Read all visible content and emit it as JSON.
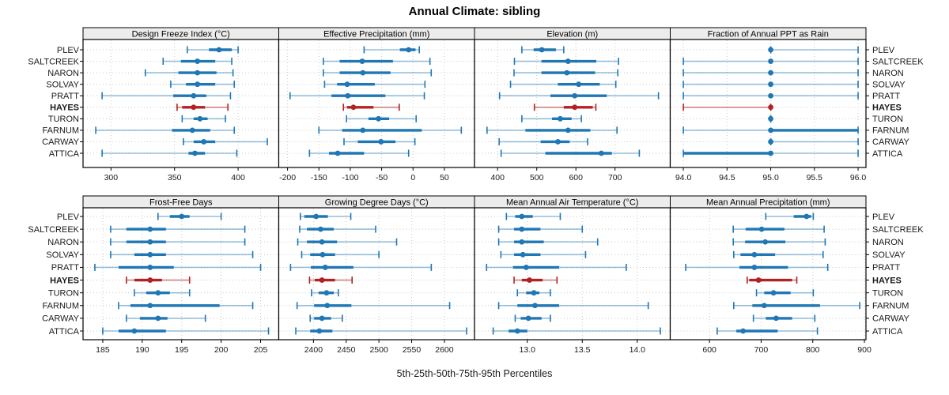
{
  "title": "Annual Climate: sibling",
  "footer_label": "5th-25th-50th-75th-95th Percentiles",
  "sites": [
    "PLEV",
    "SALTCREEK",
    "NARON",
    "SOLVAY",
    "PRATT",
    "HAYES",
    "TURON",
    "FARNUM",
    "CARWAY",
    "ATTICA"
  ],
  "highlight_site": "HAYES",
  "percentile_levels": [
    "5th",
    "25th",
    "50th",
    "75th",
    "95th"
  ],
  "colors": {
    "series": "#1f77b4",
    "series_light": "rgba(31,119,180,0.45)",
    "highlight": "#b22222",
    "highlight_light": "rgba(178,34,34,0.55)",
    "strip_bg": "#ececec",
    "panel_border": "#000000",
    "grid": "#c9c9c9",
    "tick_text": "#1a1a1a"
  },
  "chart_data": [
    {
      "type": "interval",
      "title": "Design Freeze Index (°C)",
      "row": 0,
      "col": 0,
      "xlim": [
        278,
        432
      ],
      "ticks": [
        300,
        350,
        400
      ],
      "tick_labels": [
        "300",
        "350",
        "400"
      ],
      "grid": true,
      "series": [
        {
          "site": "PLEV",
          "percentiles": [
            360,
            377,
            385,
            395,
            400
          ]
        },
        {
          "site": "SALTCREEK",
          "percentiles": [
            341,
            355,
            368,
            382,
            395
          ]
        },
        {
          "site": "NARON",
          "percentiles": [
            327,
            353,
            368,
            383,
            396
          ]
        },
        {
          "site": "SOLVAY",
          "percentiles": [
            347,
            359,
            368,
            382,
            397
          ]
        },
        {
          "site": "PRATT",
          "percentiles": [
            293,
            349,
            365,
            375,
            394
          ]
        },
        {
          "site": "HAYES",
          "percentiles": [
            352,
            356,
            365,
            374,
            392
          ]
        },
        {
          "site": "TURON",
          "percentiles": [
            356,
            365,
            370,
            376,
            390
          ]
        },
        {
          "site": "FARNUM",
          "percentiles": [
            288,
            348,
            364,
            378,
            397
          ]
        },
        {
          "site": "CARWAY",
          "percentiles": [
            357,
            365,
            373,
            382,
            423
          ]
        },
        {
          "site": "ATTICA",
          "percentiles": [
            293,
            361,
            366,
            374,
            399
          ]
        }
      ]
    },
    {
      "type": "interval",
      "title": "Effective Precipitation (mm)",
      "row": 0,
      "col": 1,
      "xlim": [
        -214,
        98
      ],
      "ticks": [
        -200,
        -150,
        -100,
        -50,
        0,
        50
      ],
      "tick_labels": [
        "-200",
        "-150",
        "-100",
        "-50",
        "0",
        "50"
      ],
      "grid": true,
      "series": [
        {
          "site": "PLEV",
          "percentiles": [
            -78,
            -21,
            -7,
            4,
            10
          ]
        },
        {
          "site": "SALTCREEK",
          "percentiles": [
            -143,
            -117,
            -81,
            -32,
            27
          ]
        },
        {
          "site": "NARON",
          "percentiles": [
            -143,
            -117,
            -80,
            -36,
            29
          ]
        },
        {
          "site": "SOLVAY",
          "percentiles": [
            -141,
            -121,
            -105,
            -61,
            19
          ]
        },
        {
          "site": "PRATT",
          "percentiles": [
            -196,
            -130,
            -104,
            -44,
            18
          ]
        },
        {
          "site": "HAYES",
          "percentiles": [
            -111,
            -105,
            -95,
            -63,
            -22
          ]
        },
        {
          "site": "TURON",
          "percentiles": [
            -106,
            -71,
            -55,
            -38,
            5
          ]
        },
        {
          "site": "FARNUM",
          "percentiles": [
            -150,
            -113,
            -80,
            14,
            77
          ]
        },
        {
          "site": "CARWAY",
          "percentiles": [
            -110,
            -88,
            -51,
            -28,
            3
          ]
        },
        {
          "site": "ATTICA",
          "percentiles": [
            -165,
            -134,
            -120,
            -78,
            -7
          ]
        }
      ]
    },
    {
      "type": "interval",
      "title": "Elevation (m)",
      "row": 0,
      "col": 2,
      "xlim": [
        341,
        841
      ],
      "ticks": [
        400,
        500,
        600,
        700
      ],
      "tick_labels": [
        "400",
        "500",
        "600",
        "700"
      ],
      "grid": true,
      "series": [
        {
          "site": "PLEV",
          "percentiles": [
            462,
            492,
            513,
            549,
            569
          ]
        },
        {
          "site": "SALTCREEK",
          "percentiles": [
            443,
            512,
            580,
            652,
            709
          ]
        },
        {
          "site": "NARON",
          "percentiles": [
            442,
            512,
            577,
            649,
            707
          ]
        },
        {
          "site": "SOLVAY",
          "percentiles": [
            433,
            554,
            607,
            661,
            702
          ]
        },
        {
          "site": "PRATT",
          "percentiles": [
            405,
            535,
            597,
            679,
            811
          ]
        },
        {
          "site": "HAYES",
          "percentiles": [
            494,
            569,
            597,
            643,
            651
          ]
        },
        {
          "site": "TURON",
          "percentiles": [
            462,
            539,
            560,
            589,
            614
          ]
        },
        {
          "site": "FARNUM",
          "percentiles": [
            373,
            471,
            580,
            637,
            705
          ]
        },
        {
          "site": "CARWAY",
          "percentiles": [
            404,
            510,
            554,
            584,
            630
          ]
        },
        {
          "site": "ATTICA",
          "percentiles": [
            409,
            522,
            665,
            692,
            762
          ]
        }
      ]
    },
    {
      "type": "interval",
      "title": "Fraction of Annual PPT as Rain",
      "row": 0,
      "col": 3,
      "xlim": [
        93.85,
        96.09
      ],
      "ticks": [
        94.0,
        94.5,
        95.0,
        95.5,
        96.0
      ],
      "tick_labels": [
        "94.0",
        "94.5",
        "95.0",
        "95.5",
        "96.0"
      ],
      "grid": true,
      "series": [
        {
          "site": "PLEV",
          "percentiles": [
            95,
            95,
            95,
            95,
            96
          ]
        },
        {
          "site": "SALTCREEK",
          "percentiles": [
            94,
            95,
            95,
            95,
            96
          ]
        },
        {
          "site": "NARON",
          "percentiles": [
            94,
            95,
            95,
            95,
            96
          ]
        },
        {
          "site": "SOLVAY",
          "percentiles": [
            94,
            95,
            95,
            95,
            96
          ]
        },
        {
          "site": "PRATT",
          "percentiles": [
            94,
            95,
            95,
            95,
            96
          ]
        },
        {
          "site": "HAYES",
          "percentiles": [
            94,
            95,
            95,
            95,
            95
          ]
        },
        {
          "site": "TURON",
          "percentiles": [
            95,
            95,
            95,
            95,
            95
          ]
        },
        {
          "site": "FARNUM",
          "percentiles": [
            94,
            95,
            95,
            96,
            96
          ]
        },
        {
          "site": "CARWAY",
          "percentiles": [
            95,
            95,
            95,
            95,
            96
          ]
        },
        {
          "site": "ATTICA",
          "percentiles": [
            94,
            94,
            95,
            95,
            96
          ]
        }
      ]
    },
    {
      "type": "interval",
      "title": "Frost-Free Days",
      "row": 1,
      "col": 0,
      "xlim": [
        182.5,
        207.3
      ],
      "ticks": [
        185,
        190,
        195,
        200,
        205
      ],
      "tick_labels": [
        "185",
        "190",
        "195",
        "200",
        "205"
      ],
      "grid": true,
      "series": [
        {
          "site": "PLEV",
          "percentiles": [
            192,
            193.5,
            195,
            196,
            200
          ]
        },
        {
          "site": "SALTCREEK",
          "percentiles": [
            186,
            188,
            191,
            193,
            203
          ]
        },
        {
          "site": "NARON",
          "percentiles": [
            186,
            188,
            191,
            193,
            203
          ]
        },
        {
          "site": "SOLVAY",
          "percentiles": [
            186,
            189,
            191,
            193,
            204
          ]
        },
        {
          "site": "PRATT",
          "percentiles": [
            184,
            187,
            191,
            194,
            205
          ]
        },
        {
          "site": "HAYES",
          "percentiles": [
            188,
            189,
            191,
            192.5,
            196
          ]
        },
        {
          "site": "TURON",
          "percentiles": [
            189,
            190.5,
            192,
            193.5,
            196
          ]
        },
        {
          "site": "FARNUM",
          "percentiles": [
            187,
            188.5,
            191,
            199.8,
            204
          ]
        },
        {
          "site": "CARWAY",
          "percentiles": [
            188,
            189.7,
            192,
            193.2,
            198
          ]
        },
        {
          "site": "ATTICA",
          "percentiles": [
            185,
            187,
            189,
            193,
            206
          ]
        }
      ]
    },
    {
      "type": "interval",
      "title": "Growing Degree Days (°C)",
      "row": 1,
      "col": 1,
      "xlim": [
        2347,
        2646
      ],
      "ticks": [
        2400,
        2450,
        2500,
        2550,
        2600
      ],
      "tick_labels": [
        "2400",
        "2450",
        "2500",
        "2550",
        "2600"
      ],
      "grid": true,
      "series": [
        {
          "site": "PLEV",
          "percentiles": [
            2380,
            2386,
            2404,
            2422,
            2457
          ]
        },
        {
          "site": "SALTCREEK",
          "percentiles": [
            2379,
            2390,
            2411,
            2431,
            2495
          ]
        },
        {
          "site": "NARON",
          "percentiles": [
            2376,
            2390,
            2413,
            2436,
            2527
          ]
        },
        {
          "site": "SOLVAY",
          "percentiles": [
            2382,
            2395,
            2414,
            2433,
            2500
          ]
        },
        {
          "site": "PRATT",
          "percentiles": [
            2365,
            2396,
            2418,
            2461,
            2580
          ]
        },
        {
          "site": "HAYES",
          "percentiles": [
            2394,
            2402,
            2413,
            2433,
            2459
          ]
        },
        {
          "site": "TURON",
          "percentiles": [
            2397,
            2408,
            2420,
            2431,
            2438
          ]
        },
        {
          "site": "FARNUM",
          "percentiles": [
            2375,
            2401,
            2421,
            2458,
            2608
          ]
        },
        {
          "site": "CARWAY",
          "percentiles": [
            2395,
            2401,
            2413,
            2427,
            2444
          ]
        },
        {
          "site": "ATTICA",
          "percentiles": [
            2373,
            2395,
            2409,
            2429,
            2634
          ]
        }
      ]
    },
    {
      "type": "interval",
      "title": "Mean Annual Air Temperature (°C)",
      "row": 1,
      "col": 2,
      "xlim": [
        12.52,
        14.3
      ],
      "ticks": [
        13.0,
        13.5,
        14.0
      ],
      "tick_labels": [
        "13.0",
        "13.5",
        "14.0"
      ],
      "grid": true,
      "series": [
        {
          "site": "PLEV",
          "percentiles": [
            12.81,
            12.89,
            12.95,
            13.05,
            13.3
          ]
        },
        {
          "site": "SALTCREEK",
          "percentiles": [
            12.74,
            12.88,
            12.95,
            13.12,
            13.5
          ]
        },
        {
          "site": "NARON",
          "percentiles": [
            12.74,
            12.88,
            12.95,
            13.15,
            13.64
          ]
        },
        {
          "site": "SOLVAY",
          "percentiles": [
            12.76,
            12.88,
            12.96,
            13.12,
            13.53
          ]
        },
        {
          "site": "PRATT",
          "percentiles": [
            12.63,
            12.87,
            12.99,
            13.29,
            13.9
          ]
        },
        {
          "site": "HAYES",
          "percentiles": [
            12.88,
            12.95,
            13.02,
            13.14,
            13.27
          ]
        },
        {
          "site": "TURON",
          "percentiles": [
            12.91,
            12.99,
            13.06,
            13.11,
            13.21
          ]
        },
        {
          "site": "FARNUM",
          "percentiles": [
            12.74,
            12.91,
            13.07,
            13.29,
            14.1
          ]
        },
        {
          "site": "CARWAY",
          "percentiles": [
            12.89,
            12.94,
            13.01,
            13.13,
            13.21
          ]
        },
        {
          "site": "ATTICA",
          "percentiles": [
            12.69,
            12.83,
            12.91,
            13.0,
            14.21
          ]
        }
      ]
    },
    {
      "type": "interval",
      "title": "Mean Annual Precipitation (mm)",
      "row": 1,
      "col": 3,
      "xlim": [
        524,
        903
      ],
      "ticks": [
        600,
        700,
        800,
        900
      ],
      "tick_labels": [
        "600",
        "700",
        "800",
        "900"
      ],
      "grid": true,
      "series": [
        {
          "site": "PLEV",
          "percentiles": [
            709,
            763,
            788,
            797,
            801
          ]
        },
        {
          "site": "SALTCREEK",
          "percentiles": [
            646,
            670,
            701,
            745,
            822
          ]
        },
        {
          "site": "NARON",
          "percentiles": [
            646,
            669,
            708,
            747,
            824
          ]
        },
        {
          "site": "SOLVAY",
          "percentiles": [
            647,
            660,
            687,
            727,
            820
          ]
        },
        {
          "site": "PRATT",
          "percentiles": [
            554,
            658,
            687,
            752,
            829
          ]
        },
        {
          "site": "HAYES",
          "percentiles": [
            673,
            677,
            695,
            760,
            769
          ]
        },
        {
          "site": "TURON",
          "percentiles": [
            691,
            706,
            724,
            757,
            801
          ]
        },
        {
          "site": "FARNUM",
          "percentiles": [
            647,
            683,
            706,
            814,
            891
          ]
        },
        {
          "site": "CARWAY",
          "percentiles": [
            685,
            709,
            729,
            760,
            804
          ]
        },
        {
          "site": "ATTICA",
          "percentiles": [
            615,
            652,
            665,
            732,
            809
          ]
        }
      ]
    }
  ]
}
